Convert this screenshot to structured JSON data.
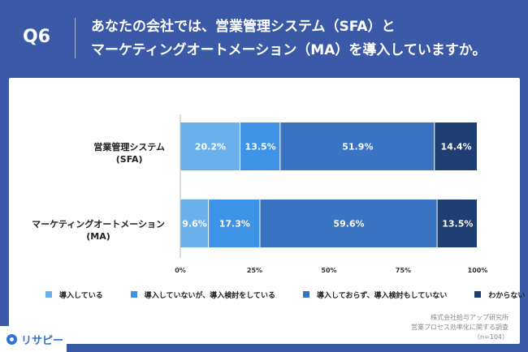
{
  "header": {
    "q_number": "Q6",
    "question_line1": "あなたの会社では、営業管理システム（SFA）と",
    "question_line2": "マーケティングオートメーション（MA）を導入していますか。"
  },
  "chart_data": {
    "type": "bar",
    "orientation": "horizontal",
    "stacked": true,
    "categories": [
      {
        "line1": "営業管理システム",
        "line2": "(SFA)"
      },
      {
        "line1": "マーケティングオートメーション",
        "line2": "(MA)"
      }
    ],
    "series": [
      {
        "name": "導入している",
        "color": "#6ab1ec",
        "values": [
          20.2,
          9.6
        ],
        "labels": [
          "20.2%",
          "9.6%"
        ]
      },
      {
        "name": "導入していないが、導入検討をしている",
        "color": "#3f93e6",
        "values": [
          13.5,
          17.3
        ],
        "labels": [
          "13.5%",
          "17.3%"
        ]
      },
      {
        "name": "導入しておらず、導入検討もしていない",
        "color": "#3a73c2",
        "values": [
          51.9,
          59.6
        ],
        "labels": [
          "51.9%",
          "59.6%"
        ]
      },
      {
        "name": "わからない",
        "color": "#1f3f73",
        "values": [
          14.4,
          13.5
        ],
        "labels": [
          "14.4%",
          "13.5%"
        ]
      }
    ],
    "xlim": [
      0,
      100
    ],
    "x_ticks": [
      "0%",
      "25%",
      "50%",
      "75%",
      "100%"
    ],
    "legend_position": "bottom",
    "grid": false
  },
  "source": {
    "line1": "株式会社給与アップ研究所",
    "line2": "営業プロセス効率化に関する調査",
    "line3": "（n=104）"
  },
  "logo": {
    "text": "リサピー"
  }
}
